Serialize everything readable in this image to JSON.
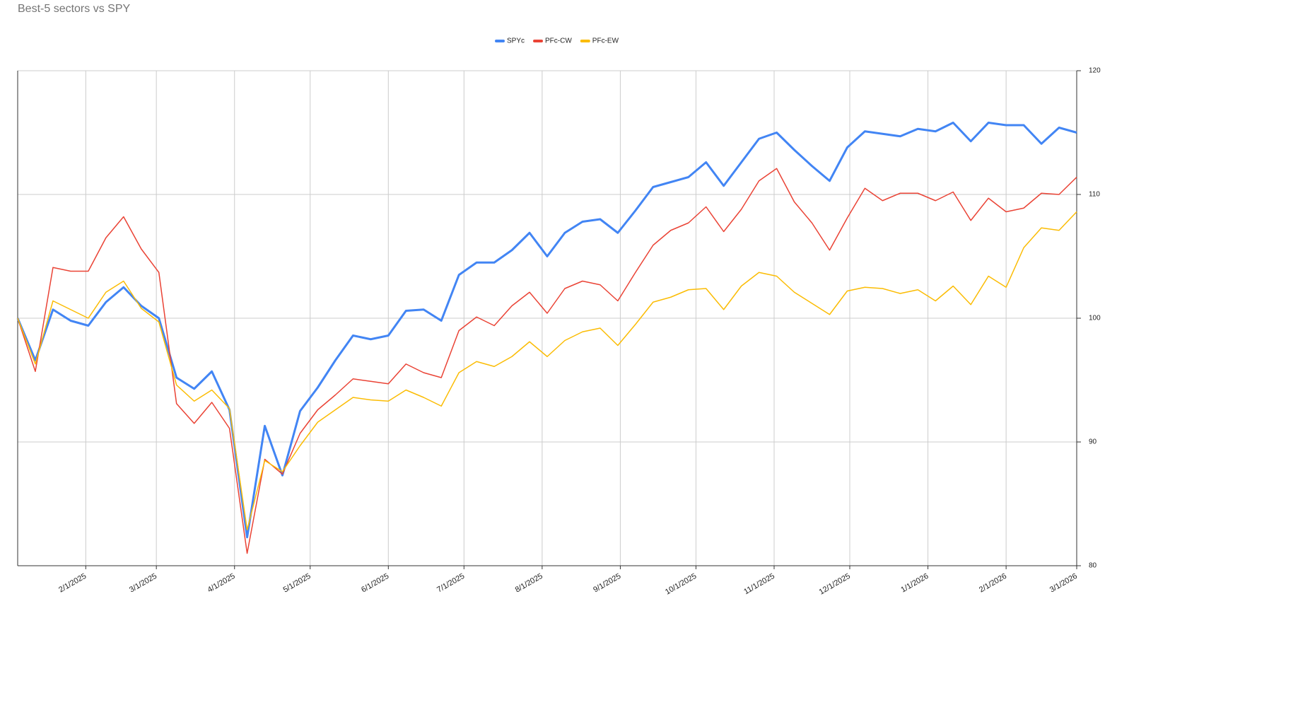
{
  "chart_data": {
    "type": "line",
    "title": "Best-5 sectors vs SPY",
    "x": [
      "1/5/2025",
      "1/12/2025",
      "1/19/2025",
      "1/26/2025",
      "2/2/2025",
      "2/9/2025",
      "2/16/2025",
      "2/23/2025",
      "3/2/2025",
      "3/9/2025",
      "3/16/2025",
      "3/23/2025",
      "3/30/2025",
      "4/6/2025",
      "4/13/2025",
      "4/20/2025",
      "4/27/2025",
      "5/4/2025",
      "5/11/2025",
      "5/18/2025",
      "5/25/2025",
      "6/1/2025",
      "6/8/2025",
      "6/15/2025",
      "6/22/2025",
      "6/29/2025",
      "7/6/2025",
      "7/13/2025",
      "7/20/2025",
      "7/27/2025",
      "8/3/2025",
      "8/10/2025",
      "8/17/2025",
      "8/24/2025",
      "8/31/2025",
      "9/7/2025",
      "9/14/2025",
      "9/21/2025",
      "9/28/2025",
      "10/5/2025",
      "10/12/2025",
      "10/19/2025",
      "10/26/2025",
      "11/2/2025",
      "11/9/2025",
      "11/16/2025",
      "11/23/2025",
      "11/30/2025",
      "12/7/2025",
      "12/14/2025",
      "12/21/2025",
      "12/28/2025",
      "1/4/2026",
      "1/11/2026",
      "1/18/2026",
      "1/25/2026",
      "2/1/2026",
      "2/8/2026",
      "2/15/2026",
      "2/22/2026",
      "3/1/2026"
    ],
    "series": [
      {
        "name": "SPYc",
        "color": "#4285f4",
        "width": 3,
        "values": [
          100,
          96.6,
          100.7,
          99.8,
          99.4,
          101.3,
          102.5,
          101.0,
          100.0,
          95.2,
          94.3,
          95.7,
          92.6,
          82.3,
          91.3,
          87.3,
          92.5,
          94.4,
          96.6,
          98.6,
          98.3,
          98.6,
          100.6,
          100.7,
          99.8,
          103.5,
          104.5,
          104.5,
          105.5,
          106.9,
          105.0,
          106.9,
          107.8,
          108.0,
          106.9,
          108.7,
          110.6,
          111.0,
          111.4,
          112.6,
          110.7,
          112.6,
          114.5,
          115.0,
          113.6,
          112.3,
          111.1,
          113.8,
          115.1,
          114.9,
          114.7,
          115.3,
          115.1,
          115.8,
          114.3,
          115.8,
          115.6,
          115.6,
          114.1,
          115.4,
          115.0
        ]
      },
      {
        "name": "PFc-CW",
        "color": "#ea4335",
        "width": 1.5,
        "values": [
          100,
          95.7,
          104.1,
          103.8,
          103.8,
          106.5,
          108.2,
          105.6,
          103.7,
          93.1,
          91.5,
          93.2,
          91.1,
          81.0,
          88.6,
          87.4,
          90.7,
          92.6,
          93.8,
          95.1,
          94.9,
          94.7,
          96.3,
          95.6,
          95.2,
          99.0,
          100.1,
          99.4,
          101.0,
          102.1,
          100.4,
          102.4,
          103.0,
          102.7,
          101.4,
          103.7,
          105.9,
          107.1,
          107.7,
          109.0,
          107.0,
          108.8,
          111.1,
          112.1,
          109.4,
          107.7,
          105.5,
          108.1,
          110.5,
          109.5,
          110.1,
          110.1,
          109.5,
          110.2,
          107.9,
          109.7,
          108.6,
          108.9,
          110.1,
          110.0,
          111.4
        ]
      },
      {
        "name": "PFc-EW",
        "color": "#fbbc04",
        "width": 1.5,
        "values": [
          100,
          96.3,
          101.4,
          100.7,
          100.0,
          102.1,
          103.0,
          100.8,
          99.7,
          94.6,
          93.3,
          94.2,
          92.7,
          82.9,
          88.5,
          87.6,
          89.7,
          91.6,
          92.6,
          93.6,
          93.4,
          93.3,
          94.2,
          93.6,
          92.9,
          95.6,
          96.5,
          96.1,
          96.9,
          98.1,
          96.9,
          98.2,
          98.9,
          99.2,
          97.8,
          99.5,
          101.3,
          101.7,
          102.3,
          102.4,
          100.7,
          102.6,
          103.7,
          103.4,
          102.1,
          101.2,
          100.3,
          102.2,
          102.5,
          102.4,
          102.0,
          102.3,
          101.4,
          102.6,
          101.1,
          103.4,
          102.5,
          105.7,
          107.3,
          107.1,
          108.6
        ]
      }
    ],
    "xlim": [
      "1/5/2025",
      "3/1/2026"
    ],
    "xticks": [
      "2/1/2025",
      "3/1/2025",
      "4/1/2025",
      "5/1/2025",
      "6/1/2025",
      "7/1/2025",
      "8/1/2025",
      "9/1/2025",
      "10/1/2025",
      "11/1/2025",
      "12/1/2025",
      "1/1/2026",
      "2/1/2026",
      "3/1/2026"
    ],
    "ylim": [
      80,
      120
    ],
    "yticks": [
      80,
      90,
      100,
      110,
      120
    ],
    "y_axis_side": "right",
    "grid": true,
    "legend": "top"
  }
}
